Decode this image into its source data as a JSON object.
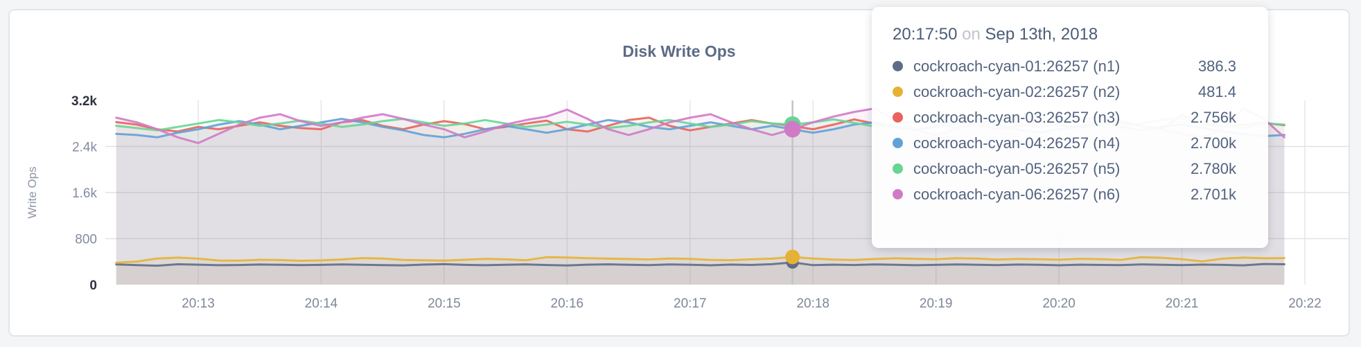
{
  "page": {
    "background": "#f4f5f6"
  },
  "card": {
    "background": "#ffffff",
    "border_color": "#e4e5e7"
  },
  "chart_data": {
    "type": "area",
    "title": "Disk Write Ops",
    "xlabel": "",
    "ylabel": "Write Ops",
    "ylim": [
      0,
      3200
    ],
    "grid": true,
    "legend_position": "tooltip",
    "y_ticks": [
      {
        "value": 0,
        "label": "0"
      },
      {
        "value": 800,
        "label": "800"
      },
      {
        "value": 1600,
        "label": "1.6k"
      },
      {
        "value": 2400,
        "label": "2.4k"
      },
      {
        "value": 3200,
        "label": "3.2k"
      }
    ],
    "x_ticks": [
      "20:13",
      "20:14",
      "20:15",
      "20:16",
      "20:17",
      "20:18",
      "20:19",
      "20:20",
      "20:21",
      "20:22"
    ],
    "x_start": "20:12:20",
    "x_step_seconds": 10,
    "series": [
      {
        "name": "cockroach-cyan-01:26257 (n1)",
        "color": "#5f6c87",
        "values": [
          352,
          341,
          330,
          355,
          348,
          338,
          342,
          350,
          346,
          339,
          344,
          352,
          347,
          341,
          336,
          349,
          356,
          344,
          338,
          347,
          351,
          342,
          335,
          348,
          354,
          346,
          340,
          352,
          345,
          337,
          349,
          343,
          356,
          386.3,
          339,
          348,
          342,
          351,
          346,
          338,
          344,
          353,
          347,
          341,
          350,
          345,
          337,
          348,
          343,
          339,
          352,
          346,
          341,
          349,
          344,
          336,
          360,
          355
        ]
      },
      {
        "name": "cockroach-cyan-02:26257 (n2)",
        "color": "#e5b236",
        "values": [
          381,
          402,
          455,
          470,
          452,
          420,
          418,
          432,
          428,
          415,
          422,
          438,
          462,
          455,
          430,
          424,
          419,
          433,
          447,
          440,
          425,
          478,
          472,
          460,
          452,
          446,
          438,
          455,
          448,
          430,
          426,
          440,
          452,
          481.4,
          455,
          437,
          428,
          446,
          458,
          450,
          442,
          460,
          453,
          436,
          448,
          441,
          433,
          450,
          444,
          430,
          476,
          468,
          442,
          404,
          452,
          470,
          458,
          462
        ]
      },
      {
        "name": "cockroach-cyan-03:26257 (n3)",
        "color": "#e8635d",
        "values": [
          2825,
          2780,
          2700,
          2660,
          2740,
          2700,
          2760,
          2820,
          2760,
          2720,
          2700,
          2820,
          2860,
          2760,
          2700,
          2780,
          2840,
          2790,
          2700,
          2740,
          2800,
          2850,
          2700,
          2660,
          2760,
          2860,
          2900,
          2760,
          2680,
          2740,
          2800,
          2860,
          2800,
          2756,
          2700,
          2780,
          2870,
          2800,
          2740,
          2690,
          2760,
          2820,
          2780,
          2700,
          2760,
          2840,
          2780,
          2720,
          2780,
          2820,
          2760,
          2700,
          2950,
          2800,
          2740,
          2780,
          2810,
          2770
        ]
      },
      {
        "name": "cockroach-cyan-04:26257 (n4)",
        "color": "#61a1d6",
        "values": [
          2620,
          2600,
          2560,
          2640,
          2700,
          2780,
          2840,
          2780,
          2700,
          2760,
          2820,
          2880,
          2820,
          2740,
          2680,
          2600,
          2560,
          2620,
          2700,
          2760,
          2700,
          2640,
          2700,
          2780,
          2860,
          2820,
          2740,
          2700,
          2760,
          2820,
          2760,
          2700,
          2760,
          2700,
          2640,
          2700,
          2780,
          2820,
          2740,
          2680,
          2740,
          2800,
          2860,
          2780,
          2700,
          2640,
          2700,
          2760,
          2800,
          2740,
          2680,
          2740,
          2780,
          2720,
          2660,
          2620,
          2580,
          2600
        ]
      },
      {
        "name": "cockroach-cyan-05:26257 (n5)",
        "color": "#67d593",
        "values": [
          2760,
          2720,
          2680,
          2740,
          2800,
          2860,
          2820,
          2760,
          2800,
          2850,
          2800,
          2740,
          2780,
          2840,
          2880,
          2820,
          2760,
          2800,
          2860,
          2800,
          2740,
          2780,
          2830,
          2780,
          2720,
          2760,
          2820,
          2860,
          2800,
          2740,
          2780,
          2840,
          2800,
          2780,
          2820,
          2870,
          2810,
          2750,
          2790,
          2840,
          2790,
          2730,
          2770,
          2830,
          2790,
          2740,
          2790,
          2850,
          2800,
          2750,
          2800,
          2860,
          2900,
          2820,
          2760,
          2720,
          2800,
          2780
        ]
      },
      {
        "name": "cockroach-cyan-06:26257 (n6)",
        "color": "#d07ac6",
        "values": [
          2900,
          2820,
          2700,
          2560,
          2460,
          2620,
          2780,
          2900,
          2960,
          2840,
          2760,
          2820,
          2900,
          2960,
          2880,
          2780,
          2700,
          2560,
          2660,
          2780,
          2860,
          2920,
          3040,
          2880,
          2700,
          2600,
          2700,
          2820,
          2900,
          2960,
          2820,
          2700,
          2600,
          2701,
          2820,
          2920,
          3000,
          3060,
          2860,
          2700,
          2600,
          2700,
          2800,
          2880,
          2820,
          2740,
          2800,
          2860,
          2920,
          2840,
          2760,
          2700,
          2620,
          2560,
          2700,
          3060,
          2880,
          2560
        ]
      }
    ]
  },
  "tooltip": {
    "time": "20:17:50",
    "conjunction": "on",
    "date": "Sep 13th, 2018",
    "rows": [
      {
        "name": "cockroach-cyan-01:26257 (n1)",
        "value": "386.3",
        "color": "#5f6c87"
      },
      {
        "name": "cockroach-cyan-02:26257 (n2)",
        "value": "481.4",
        "color": "#e5b236"
      },
      {
        "name": "cockroach-cyan-03:26257 (n3)",
        "value": "2.756k",
        "color": "#e8635d"
      },
      {
        "name": "cockroach-cyan-04:26257 (n4)",
        "value": "2.700k",
        "color": "#61a1d6"
      },
      {
        "name": "cockroach-cyan-05:26257 (n5)",
        "value": "2.780k",
        "color": "#67d593"
      },
      {
        "name": "cockroach-cyan-06:26257 (n6)",
        "value": "2.701k",
        "color": "#d07ac6"
      }
    ]
  }
}
